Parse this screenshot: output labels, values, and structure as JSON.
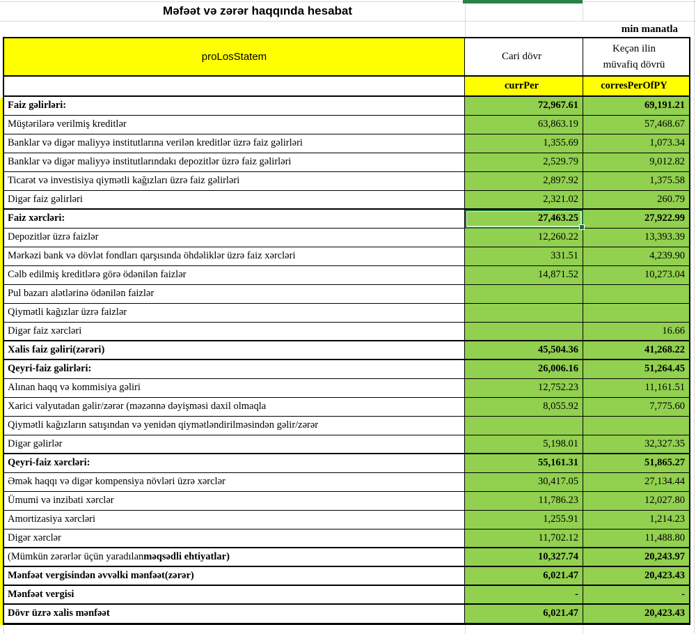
{
  "title": "Məfəət və zərər haqqında hesabat",
  "units_note": "min manatla",
  "colors": {
    "header_yellow": "#FFFF00",
    "value_green": "#92D050",
    "selection_green": "#1A7240",
    "top_bar_green": "#2B8048",
    "border_black": "#000000",
    "gridline_gray": "#d9d9d9"
  },
  "header": {
    "label": "proLosStatem",
    "col1": "Cari dövr",
    "col2_line1": "Keçən ilin",
    "col2_line2": "müvafiq dövrü",
    "sub1": "currPer",
    "sub2": "corresPerOfPY"
  },
  "rows": [
    {
      "label": "Faiz gəlirləri:",
      "v1": "72,967.61",
      "v2": "69,191.21",
      "bold": true
    },
    {
      "label": "Müştərilərə verilmiş kreditlər",
      "v1": "63,863.19",
      "v2": "57,468.67",
      "bold": false
    },
    {
      "label": "Banklar və digər maliyyə institutlarına verilən kreditlər üzrə faiz gəlirləri",
      "v1": "1,355.69",
      "v2": "1,073.34",
      "bold": false
    },
    {
      "label": "Banklar və digər maliyyə institutlarındakı depozitlər üzrə faiz gəlirləri",
      "v1": "2,529.79",
      "v2": "9,012.82",
      "bold": false
    },
    {
      "label": "Ticarət və investisiya qiymətli kağızları üzrə faiz gəlirləri",
      "v1": "2,897.92",
      "v2": "1,375.58",
      "bold": false
    },
    {
      "label": "Digər faiz gəlirləri",
      "v1": "2,321.02",
      "v2": "260.79",
      "bold": false
    },
    {
      "label": "Faiz xərcləri:",
      "v1": "27,463.25",
      "v2": "27,922.99",
      "bold": true,
      "selected": "v1"
    },
    {
      "label": "Depozitlər üzrə faizlər",
      "v1": "12,260.22",
      "v2": "13,393.39",
      "bold": false
    },
    {
      "label": "Mərkəzi bank və dövlət fondları qarşısında öhdəliklər üzrə faiz xərcləri",
      "v1": "331.51",
      "v2": "4,239.90",
      "bold": false
    },
    {
      "label": "Cəlb edilmiş kreditlərə görə ödənilən faizlər",
      "v1": "14,871.52",
      "v2": "10,273.04",
      "bold": false
    },
    {
      "label": "Pul bazarı alətlərinə ödənilən faizlər",
      "v1": "",
      "v2": "",
      "bold": false
    },
    {
      "label": "Qiymətli kağızlar üzrə faizlər",
      "v1": "",
      "v2": "",
      "bold": false
    },
    {
      "label": "Digər faiz xərcləri",
      "v1": "",
      "v2": "16.66",
      "bold": false
    },
    {
      "label": "Xalis faiz gəliri(zərəri)",
      "v1": "45,504.36",
      "v2": "41,268.22",
      "bold": true
    },
    {
      "label": "Qeyri-faiz gəlirləri:",
      "v1": "26,006.16",
      "v2": "51,264.45",
      "bold": true
    },
    {
      "label": "Alınan haqq və kommisiya gəliri",
      "v1": "12,752.23",
      "v2": "11,161.51",
      "bold": false
    },
    {
      "label": "Xarici valyutadan gəlir/zərər (məzənnə dəyişməsi daxil olmaqla",
      "v1": "8,055.92",
      "v2": "7,775.60",
      "bold": false
    },
    {
      "label": "Qiymətli kağızların satışından və yenidən qiymətləndirilməsindən gəlir/zərər",
      "v1": "",
      "v2": "",
      "bold": false
    },
    {
      "label": "Digər gəlirlər",
      "v1": "5,198.01",
      "v2": "32,327.35",
      "bold": false
    },
    {
      "label": "Qeyri-faiz xərcləri:",
      "v1": "55,161.31",
      "v2": "51,865.27",
      "bold": true
    },
    {
      "label": "Əmək haqqı və digər kompensiya növləri üzrə xərclər",
      "v1": "30,417.05",
      "v2": "27,134.44",
      "bold": false
    },
    {
      "label": "Ümumi və inzibati xərclər",
      "v1": "11,786.23",
      "v2": "12,027.80",
      "bold": false
    },
    {
      "label": "Amortizasiya xərcləri",
      "v1": "1,255.91",
      "v2": "1,214.23",
      "bold": false
    },
    {
      "label": "Digər xərclər",
      "v1": "11,702.12",
      "v2": "11,488.80",
      "bold": false
    },
    {
      "label": "(Mümkün zərərlər üçün yaradılan ",
      "label_bold": "məqsədli ehtiyatlar)",
      "v1": "10,327.74",
      "v2": "20,243.97",
      "bold": false,
      "values_bold": true
    },
    {
      "label": "Mənfəət vergisindən əvvəlki mənfəət(zərər)",
      "v1": "6,021.47",
      "v2": "20,423.43",
      "bold": true
    },
    {
      "label": "Mənfəət vergisi",
      "v1": "-",
      "v2": "-",
      "bold": true
    },
    {
      "label": "Dövr üzrə xalis mənfəət",
      "v1": "6,021.47",
      "v2": "20,423.43",
      "bold": true
    }
  ]
}
